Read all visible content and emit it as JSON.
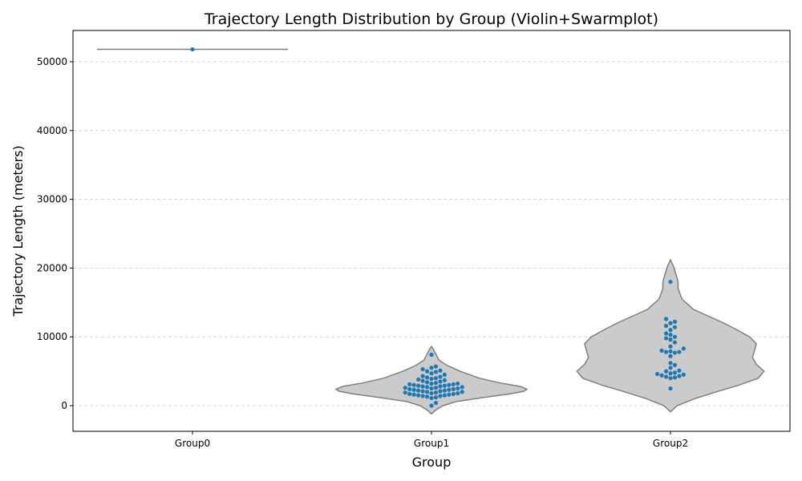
{
  "chart_data": {
    "type": "violin",
    "title": "Trajectory Length Distribution by Group (Violin+Swarmplot)",
    "xlabel": "Group",
    "ylabel": "Trajectory Length (meters)",
    "categories": [
      "Group0",
      "Group1",
      "Group2"
    ],
    "ylim": [
      -3800,
      54500
    ],
    "yticks": [
      0,
      10000,
      20000,
      30000,
      40000,
      50000
    ],
    "grid": "y-dashed",
    "colors": {
      "violin_fill": "#cbcbcb",
      "violin_edge": "#7f7f7f",
      "point": "#1f77b4",
      "grid": "#cccccc"
    },
    "groups": [
      {
        "name": "Group0",
        "points": [
          51800
        ],
        "violin_profile": []
      },
      {
        "name": "Group1",
        "points": [
          0,
          400,
          1100,
          1200,
          1300,
          1400,
          1400,
          1500,
          1500,
          1600,
          1600,
          1700,
          1700,
          1800,
          1800,
          1900,
          1900,
          2000,
          2000,
          2100,
          2100,
          2200,
          2200,
          2300,
          2300,
          2400,
          2400,
          2500,
          2500,
          2600,
          2600,
          2700,
          2700,
          2800,
          2800,
          2900,
          2900,
          3000,
          3000,
          3100,
          3100,
          3200,
          3200,
          3300,
          3400,
          3500,
          3600,
          3700,
          3800,
          3900,
          4000,
          4100,
          4200,
          4300,
          4500,
          4700,
          4900,
          5000,
          5100,
          5300,
          5500,
          5700,
          7400
        ],
        "violin_profile": [
          [
            -1200,
            0.0
          ],
          [
            -600,
            0.05
          ],
          [
            0,
            0.12
          ],
          [
            600,
            0.26
          ],
          [
            1200,
            0.55
          ],
          [
            1700,
            0.82
          ],
          [
            2100,
            0.97
          ],
          [
            2400,
            1.0
          ],
          [
            2800,
            0.93
          ],
          [
            3300,
            0.72
          ],
          [
            4000,
            0.5
          ],
          [
            5000,
            0.3
          ],
          [
            5800,
            0.17
          ],
          [
            6600,
            0.08
          ],
          [
            7500,
            0.045
          ],
          [
            8200,
            0.02
          ],
          [
            8600,
            0.0
          ]
        ]
      },
      {
        "name": "Group2",
        "points": [
          2500,
          4000,
          4100,
          4200,
          4300,
          4400,
          4500,
          4600,
          4700,
          4800,
          5000,
          5100,
          5500,
          5900,
          6200,
          7200,
          7700,
          7800,
          7800,
          7900,
          8000,
          8300,
          8600,
          9200,
          9600,
          9800,
          10000,
          10300,
          10500,
          11000,
          11400,
          11600,
          12000,
          12200,
          12600,
          18000
        ],
        "violin_profile": [
          [
            -900,
            0.0
          ],
          [
            0,
            0.07
          ],
          [
            1000,
            0.25
          ],
          [
            2000,
            0.48
          ],
          [
            3000,
            0.72
          ],
          [
            4000,
            0.92
          ],
          [
            5000,
            0.98
          ],
          [
            6000,
            0.9
          ],
          [
            7000,
            0.86
          ],
          [
            8000,
            0.88
          ],
          [
            9000,
            0.9
          ],
          [
            10000,
            0.83
          ],
          [
            11000,
            0.7
          ],
          [
            12000,
            0.56
          ],
          [
            13000,
            0.4
          ],
          [
            14000,
            0.24
          ],
          [
            15500,
            0.12
          ],
          [
            17000,
            0.08
          ],
          [
            18000,
            0.08
          ],
          [
            19000,
            0.06
          ],
          [
            20300,
            0.03
          ],
          [
            21200,
            0.0
          ]
        ]
      }
    ]
  }
}
